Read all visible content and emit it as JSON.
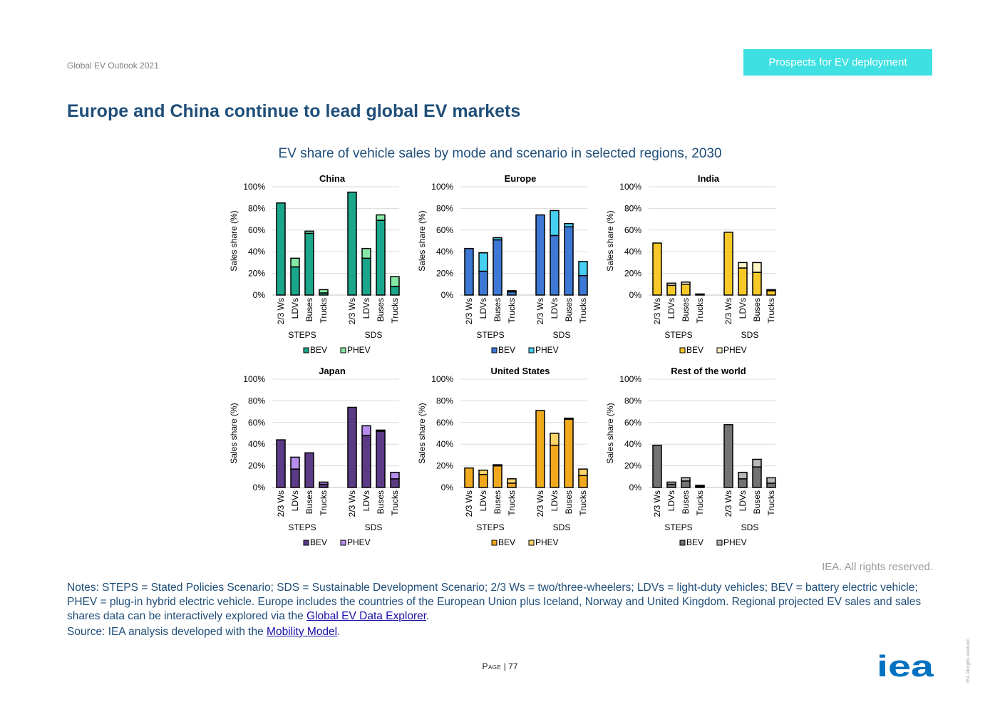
{
  "header": {
    "publication": "Global EV Outlook 2021",
    "section_tag": "Prospects for EV deployment",
    "page_title": "Europe and China continue to lead global EV markets"
  },
  "figure_title": "EV share of vehicle sales by mode and scenario in selected regions, 2030",
  "rights": "IEA. All rights reserved.",
  "notes": {
    "text_before_link": "Notes: STEPS = Stated Policies Scenario; SDS = Sustainable Development Scenario; 2/3 Ws = two/three-wheelers; LDVs = light-duty vehicles; BEV = battery electric vehicle; PHEV = plug-in hybrid electric vehicle. Europe includes the countries of the European Union plus Iceland, Norway and United Kingdom. Regional projected EV sales and sales shares data can be interactively explored via the ",
    "link_label": "Global EV Data Explorer",
    "text_after_link": ".",
    "source_prefix": "Source: IEA analysis developed with the ",
    "source_link": "Mobility Model",
    "source_suffix": "."
  },
  "footer": {
    "page_word": "Page",
    "page_separator": " | ",
    "page_number": "77",
    "logo_text": "iea",
    "side_note": "IEA. All rights reserved."
  },
  "chart_data": [
    {
      "type": "bar",
      "stacked": true,
      "title": "China",
      "ylabel": "Sales share (%)",
      "ylim": [
        0,
        100
      ],
      "yticks": [
        "0%",
        "20%",
        "40%",
        "60%",
        "80%",
        "100%"
      ],
      "categories": [
        "2/3 Ws",
        "LDVs",
        "Buses",
        "Trucks"
      ],
      "groups": [
        "STEPS",
        "SDS"
      ],
      "colors": {
        "BEV": "#1aa68a",
        "PHEV": "#86e8a6"
      },
      "series": [
        {
          "name": "BEV",
          "values": [
            [
              85,
              26,
              57,
              2
            ],
            [
              95,
              34,
              69,
              8
            ]
          ]
        },
        {
          "name": "PHEV",
          "values": [
            [
              0,
              8,
              2,
              3
            ],
            [
              0,
              9,
              5,
              9
            ]
          ]
        }
      ]
    },
    {
      "type": "bar",
      "stacked": true,
      "title": "Europe",
      "ylabel": "Sales share (%)",
      "ylim": [
        0,
        100
      ],
      "yticks": [
        "0%",
        "20%",
        "40%",
        "60%",
        "80%",
        "100%"
      ],
      "categories": [
        "2/3 Ws",
        "LDVs",
        "Buses",
        "Trucks"
      ],
      "groups": [
        "STEPS",
        "SDS"
      ],
      "colors": {
        "BEV": "#3d79d4",
        "PHEV": "#45cff0"
      },
      "series": [
        {
          "name": "BEV",
          "values": [
            [
              43,
              22,
              51,
              3
            ],
            [
              74,
              55,
              63,
              18
            ]
          ]
        },
        {
          "name": "PHEV",
          "values": [
            [
              0,
              17,
              2,
              1
            ],
            [
              0,
              23,
              3,
              13
            ]
          ]
        }
      ]
    },
    {
      "type": "bar",
      "stacked": true,
      "title": "India",
      "ylabel": "Sales share (%)",
      "ylim": [
        0,
        100
      ],
      "yticks": [
        "0%",
        "20%",
        "40%",
        "60%",
        "80%",
        "100%"
      ],
      "categories": [
        "2/3 Ws",
        "LDVs",
        "Buses",
        "Trucks"
      ],
      "groups": [
        "STEPS",
        "SDS"
      ],
      "colors": {
        "BEV": "#f7c928",
        "PHEV": "#fff3c4"
      },
      "series": [
        {
          "name": "BEV",
          "values": [
            [
              48,
              9,
              10,
              1
            ],
            [
              58,
              25,
              21,
              4
            ]
          ]
        },
        {
          "name": "PHEV",
          "values": [
            [
              0,
              2,
              2,
              0
            ],
            [
              0,
              5,
              9,
              1
            ]
          ]
        }
      ]
    },
    {
      "type": "bar",
      "stacked": true,
      "title": "Japan",
      "ylabel": "Sales share (%)",
      "ylim": [
        0,
        100
      ],
      "yticks": [
        "0%",
        "20%",
        "40%",
        "60%",
        "80%",
        "100%"
      ],
      "categories": [
        "2/3 Ws",
        "LDVs",
        "Buses",
        "Trucks"
      ],
      "groups": [
        "STEPS",
        "SDS"
      ],
      "colors": {
        "BEV": "#5b3a86",
        "PHEV": "#b78ded"
      },
      "series": [
        {
          "name": "BEV",
          "values": [
            [
              44,
              17,
              32,
              3
            ],
            [
              74,
              48,
              52,
              8
            ]
          ]
        },
        {
          "name": "PHEV",
          "values": [
            [
              0,
              11,
              0,
              2
            ],
            [
              0,
              9,
              1,
              6
            ]
          ]
        }
      ]
    },
    {
      "type": "bar",
      "stacked": true,
      "title": "United States",
      "ylabel": "Sales share (%)",
      "ylim": [
        0,
        100
      ],
      "yticks": [
        "0%",
        "20%",
        "40%",
        "60%",
        "80%",
        "100%"
      ],
      "categories": [
        "2/3 Ws",
        "LDVs",
        "Buses",
        "Trucks"
      ],
      "groups": [
        "STEPS",
        "SDS"
      ],
      "colors": {
        "BEV": "#f0a81c",
        "PHEV": "#fcd46a"
      },
      "series": [
        {
          "name": "BEV",
          "values": [
            [
              18,
              12,
              20,
              4
            ],
            [
              71,
              39,
              63,
              11
            ]
          ]
        },
        {
          "name": "PHEV",
          "values": [
            [
              0,
              4,
              1,
              4
            ],
            [
              0,
              11,
              1,
              6
            ]
          ]
        }
      ]
    },
    {
      "type": "bar",
      "stacked": true,
      "title": "Rest of the world",
      "ylabel": "Sales share (%)",
      "ylim": [
        0,
        100
      ],
      "yticks": [
        "0%",
        "20%",
        "40%",
        "60%",
        "80%",
        "100%"
      ],
      "categories": [
        "2/3 Ws",
        "LDVs",
        "Buses",
        "Trucks"
      ],
      "groups": [
        "STEPS",
        "SDS"
      ],
      "colors": {
        "BEV": "#737373",
        "PHEV": "#b8b8b8"
      },
      "series": [
        {
          "name": "BEV",
          "values": [
            [
              39,
              3,
              6,
              1
            ],
            [
              58,
              8,
              19,
              4
            ]
          ]
        },
        {
          "name": "PHEV",
          "values": [
            [
              0,
              2,
              3,
              1
            ],
            [
              0,
              6,
              7,
              5
            ]
          ]
        }
      ]
    }
  ]
}
